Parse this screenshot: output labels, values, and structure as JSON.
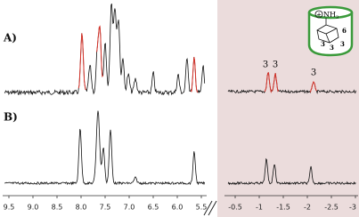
{
  "panels": [
    "A)",
    "B)"
  ],
  "axis_left": [
    "9.5",
    "9.0",
    "8.5",
    "8.0",
    "7.5",
    "7.0",
    "6.5",
    "6.0",
    "5.5"
  ],
  "axis_right": [
    "-0.5",
    "-1",
    "-1.5",
    "-2",
    "-2.5",
    "-3"
  ],
  "peak_labels": [
    "3",
    "3",
    "3"
  ],
  "inset": {
    "group": "NH",
    "subscript": "3",
    "positions": [
      "6",
      "3",
      "3",
      "3"
    ]
  }
}
